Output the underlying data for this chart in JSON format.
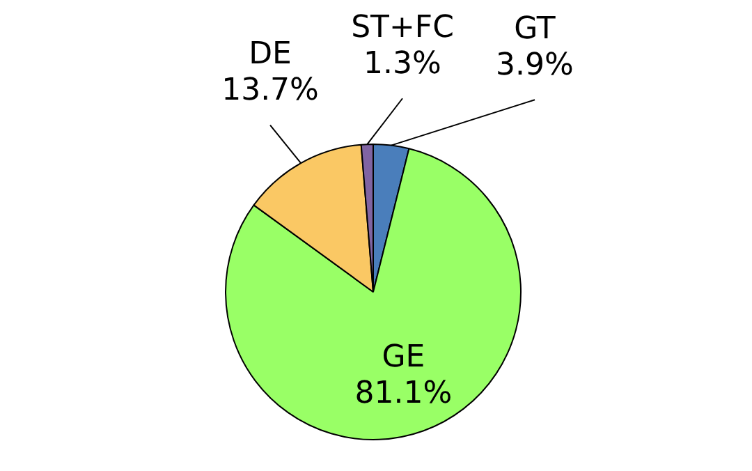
{
  "chart_data": {
    "type": "pie",
    "categories": [
      "GT",
      "GE",
      "DE",
      "ST+FC"
    ],
    "values": [
      3.9,
      81.1,
      13.7,
      1.3
    ],
    "colors": [
      "#4a7ebb",
      "#99ff66",
      "#fac864",
      "#8064a2"
    ],
    "value_labels": [
      "3.9%",
      "81.1%",
      "13.7%",
      "1.3%"
    ],
    "legend": false
  }
}
